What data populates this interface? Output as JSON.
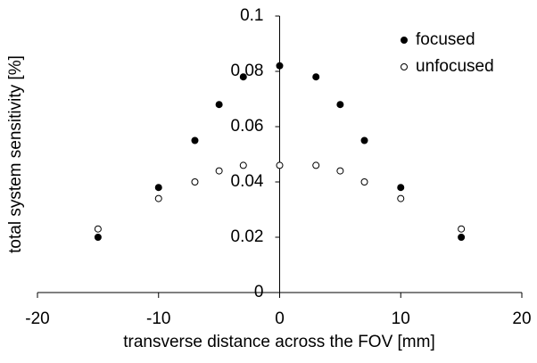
{
  "chart_data": {
    "type": "scatter",
    "x_label": "transverse distance across the FOV [mm]",
    "y_label": "total system sensitivity [%]",
    "x": [
      -15,
      -10,
      -7,
      -5,
      -3,
      0,
      3,
      5,
      7,
      10,
      15
    ],
    "series": [
      {
        "name": "focused",
        "color": "#000000",
        "values": [
          0.02,
          0.038,
          0.055,
          0.068,
          0.078,
          0.082,
          0.078,
          0.068,
          0.055,
          0.038,
          0.02
        ]
      },
      {
        "name": "unfocused",
        "color": "#ffffff",
        "values": [
          0.023,
          0.034,
          0.04,
          0.044,
          0.046,
          0.046,
          0.046,
          0.044,
          0.04,
          0.034,
          0.023
        ]
      }
    ],
    "xlim": [
      -20,
      20
    ],
    "xticks": [
      -20,
      -10,
      0,
      10,
      20
    ],
    "ylim": [
      0,
      0.1
    ],
    "yticks": [
      0,
      0.02,
      0.04,
      0.06,
      0.08,
      0.1
    ],
    "legend": "top-right"
  }
}
